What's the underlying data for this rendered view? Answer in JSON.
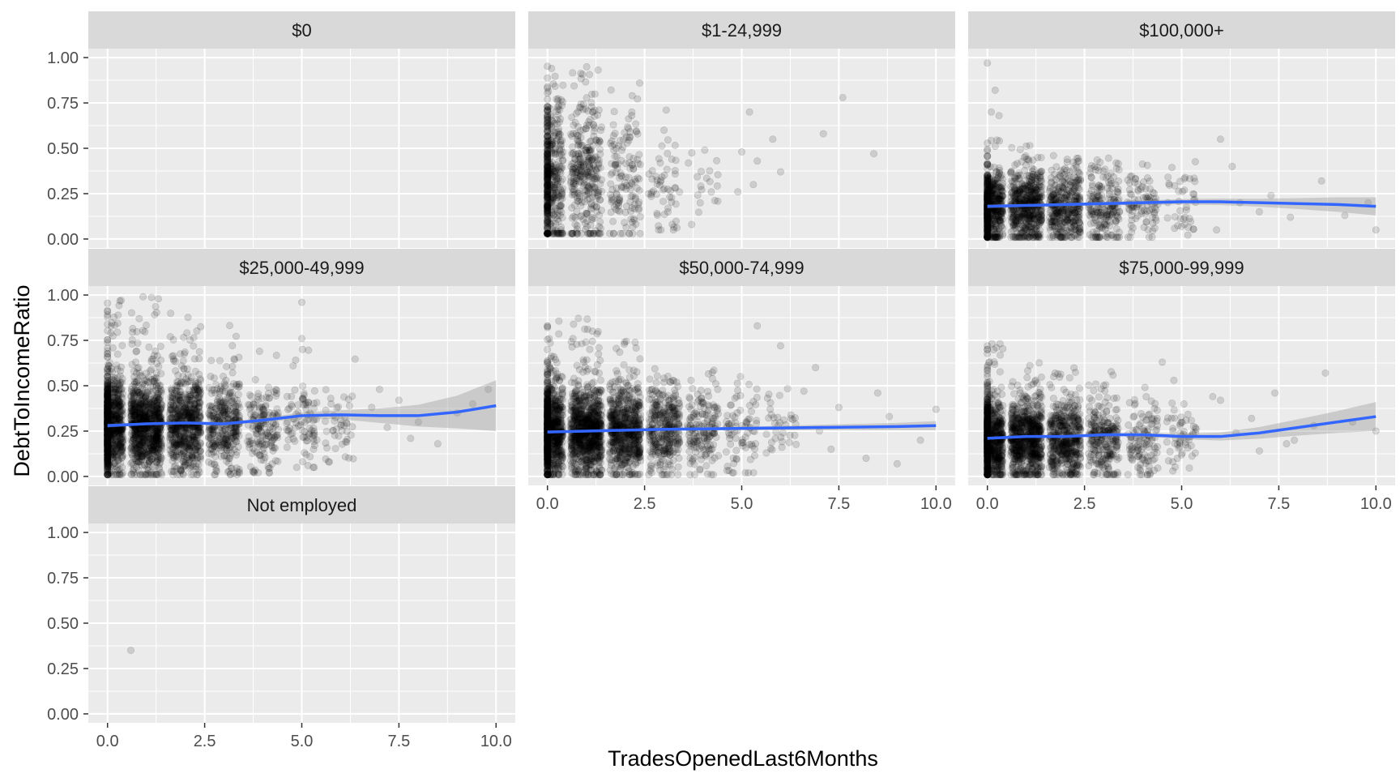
{
  "chart_data": {
    "type": "scatter",
    "xlabel": "TradesOpenedLast6Months",
    "ylabel": "DebtToIncomeRatio",
    "xlim": [
      0,
      10
    ],
    "ylim": [
      0,
      1
    ],
    "x_ticks": [
      "0.0",
      "2.5",
      "5.0",
      "7.5",
      "10.0"
    ],
    "y_ticks": [
      "0.00",
      "0.25",
      "0.50",
      "0.75",
      "1.00"
    ],
    "grid": true,
    "point_color": "#000000",
    "smooth_color": "#3366ff",
    "band_color": "#999999",
    "panel_bg": "#ebebeb",
    "strip_bg": "#d9d9d9",
    "facets": [
      {
        "label": "$0",
        "clusters": [],
        "outliers": [],
        "smooth": []
      },
      {
        "label": "$1-24,999",
        "clusters": [
          {
            "x": 0,
            "n": 520,
            "ymin": 0.03,
            "ymax": 0.98,
            "ymean": 0.33,
            "ysd": 0.22
          },
          {
            "x": 1,
            "n": 320,
            "ymin": 0.03,
            "ymax": 0.98,
            "ymean": 0.33,
            "ysd": 0.2
          },
          {
            "x": 2,
            "n": 140,
            "ymin": 0.03,
            "ymax": 0.9,
            "ymean": 0.33,
            "ysd": 0.2
          },
          {
            "x": 3,
            "n": 55,
            "ymin": 0.05,
            "ymax": 0.82,
            "ymean": 0.3,
            "ysd": 0.18
          },
          {
            "x": 4,
            "n": 20,
            "ymin": 0.08,
            "ymax": 0.65,
            "ymean": 0.3,
            "ysd": 0.15
          }
        ],
        "outliers": [
          [
            5.2,
            0.7
          ],
          [
            5.4,
            0.43
          ],
          [
            5.0,
            0.48
          ],
          [
            5.3,
            0.3
          ],
          [
            6.0,
            0.37
          ],
          [
            7.1,
            0.58
          ],
          [
            7.6,
            0.78
          ],
          [
            8.4,
            0.47
          ],
          [
            5.8,
            0.55
          ],
          [
            4.9,
            0.26
          ]
        ],
        "smooth": []
      },
      {
        "label": "$100,000+",
        "clusters": [
          {
            "x": 0,
            "n": 650,
            "ymin": 0.01,
            "ymax": 0.55,
            "ymean": 0.17,
            "ysd": 0.1
          },
          {
            "x": 1,
            "n": 550,
            "ymin": 0.01,
            "ymax": 0.52,
            "ymean": 0.17,
            "ysd": 0.1
          },
          {
            "x": 2,
            "n": 380,
            "ymin": 0.01,
            "ymax": 0.5,
            "ymean": 0.17,
            "ysd": 0.1
          },
          {
            "x": 3,
            "n": 200,
            "ymin": 0.01,
            "ymax": 0.45,
            "ymean": 0.18,
            "ysd": 0.1
          },
          {
            "x": 4,
            "n": 90,
            "ymin": 0.01,
            "ymax": 0.45,
            "ymean": 0.18,
            "ysd": 0.1
          },
          {
            "x": 5,
            "n": 40,
            "ymin": 0.01,
            "ymax": 0.45,
            "ymean": 0.18,
            "ysd": 0.1
          }
        ],
        "outliers": [
          [
            0.0,
            0.97
          ],
          [
            0.2,
            0.82
          ],
          [
            0.3,
            0.68
          ],
          [
            0.1,
            0.7
          ],
          [
            6.0,
            0.55
          ],
          [
            6.5,
            0.2
          ],
          [
            7.0,
            0.15
          ],
          [
            7.8,
            0.12
          ],
          [
            8.6,
            0.32
          ],
          [
            9.2,
            0.13
          ],
          [
            9.8,
            0.2
          ],
          [
            10.0,
            0.05
          ],
          [
            6.3,
            0.4
          ],
          [
            7.3,
            0.24
          ],
          [
            5.9,
            0.05
          ]
        ],
        "smooth": [
          [
            0,
            0.18
          ],
          [
            1,
            0.185
          ],
          [
            2,
            0.19
          ],
          [
            3,
            0.195
          ],
          [
            4,
            0.2
          ],
          [
            5,
            0.205
          ],
          [
            6,
            0.205
          ],
          [
            7,
            0.2
          ],
          [
            8,
            0.195
          ],
          [
            9,
            0.19
          ],
          [
            10,
            0.18
          ]
        ],
        "band": [
          [
            0,
            0.01
          ],
          [
            1,
            0.008
          ],
          [
            2,
            0.008
          ],
          [
            3,
            0.01
          ],
          [
            4,
            0.012
          ],
          [
            5,
            0.015
          ],
          [
            6,
            0.018
          ],
          [
            7,
            0.022
          ],
          [
            8,
            0.03
          ],
          [
            9,
            0.04
          ],
          [
            10,
            0.05
          ]
        ]
      },
      {
        "label": "$25,000-49,999",
        "clusters": [
          {
            "x": 0,
            "n": 1000,
            "ymin": 0.01,
            "ymax": 0.98,
            "ymean": 0.28,
            "ysd": 0.13
          },
          {
            "x": 1,
            "n": 900,
            "ymin": 0.01,
            "ymax": 1.0,
            "ymean": 0.28,
            "ysd": 0.13
          },
          {
            "x": 2,
            "n": 650,
            "ymin": 0.01,
            "ymax": 0.9,
            "ymean": 0.28,
            "ysd": 0.13
          },
          {
            "x": 3,
            "n": 350,
            "ymin": 0.01,
            "ymax": 0.95,
            "ymean": 0.28,
            "ysd": 0.13
          },
          {
            "x": 4,
            "n": 170,
            "ymin": 0.02,
            "ymax": 0.7,
            "ymean": 0.28,
            "ysd": 0.12
          },
          {
            "x": 5,
            "n": 90,
            "ymin": 0.05,
            "ymax": 0.7,
            "ymean": 0.3,
            "ysd": 0.12
          },
          {
            "x": 6,
            "n": 45,
            "ymin": 0.05,
            "ymax": 0.65,
            "ymean": 0.3,
            "ysd": 0.12
          }
        ],
        "outliers": [
          [
            5.0,
            0.96
          ],
          [
            5.0,
            0.76
          ],
          [
            7.0,
            0.48
          ],
          [
            7.5,
            0.42
          ],
          [
            8.0,
            0.3
          ],
          [
            8.5,
            0.18
          ],
          [
            9.0,
            0.35
          ],
          [
            9.8,
            0.48
          ],
          [
            7.2,
            0.27
          ],
          [
            7.8,
            0.21
          ],
          [
            9.4,
            0.4
          ],
          [
            6.8,
            0.38
          ]
        ],
        "smooth": [
          [
            0,
            0.28
          ],
          [
            1,
            0.29
          ],
          [
            2,
            0.295
          ],
          [
            3,
            0.29
          ],
          [
            4,
            0.31
          ],
          [
            5,
            0.335
          ],
          [
            6,
            0.34
          ],
          [
            7,
            0.335
          ],
          [
            8,
            0.335
          ],
          [
            9,
            0.355
          ],
          [
            10,
            0.39
          ]
        ],
        "band": [
          [
            0,
            0.01
          ],
          [
            1,
            0.006
          ],
          [
            2,
            0.006
          ],
          [
            3,
            0.008
          ],
          [
            4,
            0.012
          ],
          [
            5,
            0.018
          ],
          [
            6,
            0.025
          ],
          [
            7,
            0.04
          ],
          [
            8,
            0.06
          ],
          [
            9,
            0.09
          ],
          [
            10,
            0.14
          ]
        ]
      },
      {
        "label": "$50,000-74,999",
        "clusters": [
          {
            "x": 0,
            "n": 1000,
            "ymin": 0.01,
            "ymax": 0.86,
            "ymean": 0.25,
            "ysd": 0.12
          },
          {
            "x": 1,
            "n": 900,
            "ymin": 0.01,
            "ymax": 0.88,
            "ymean": 0.25,
            "ysd": 0.12
          },
          {
            "x": 2,
            "n": 650,
            "ymin": 0.01,
            "ymax": 0.75,
            "ymean": 0.25,
            "ysd": 0.12
          },
          {
            "x": 3,
            "n": 350,
            "ymin": 0.01,
            "ymax": 0.6,
            "ymean": 0.25,
            "ysd": 0.12
          },
          {
            "x": 4,
            "n": 170,
            "ymin": 0.01,
            "ymax": 0.6,
            "ymean": 0.25,
            "ysd": 0.12
          },
          {
            "x": 5,
            "n": 80,
            "ymin": 0.02,
            "ymax": 0.55,
            "ymean": 0.25,
            "ysd": 0.12
          },
          {
            "x": 6,
            "n": 35,
            "ymin": 0.02,
            "ymax": 0.5,
            "ymean": 0.25,
            "ysd": 0.12
          }
        ],
        "outliers": [
          [
            5.4,
            0.83
          ],
          [
            6.0,
            0.72
          ],
          [
            7.0,
            0.25
          ],
          [
            7.5,
            0.38
          ],
          [
            8.2,
            0.1
          ],
          [
            8.8,
            0.33
          ],
          [
            9.0,
            0.07
          ],
          [
            9.6,
            0.2
          ],
          [
            10.0,
            0.37
          ],
          [
            6.6,
            0.47
          ],
          [
            7.3,
            0.15
          ],
          [
            8.5,
            0.46
          ],
          [
            6.9,
            0.6
          ]
        ],
        "smooth": [
          [
            0,
            0.245
          ],
          [
            1,
            0.25
          ],
          [
            2,
            0.255
          ],
          [
            3,
            0.26
          ],
          [
            4,
            0.262
          ],
          [
            5,
            0.265
          ],
          [
            6,
            0.267
          ],
          [
            7,
            0.27
          ],
          [
            8,
            0.272
          ],
          [
            9,
            0.275
          ],
          [
            10,
            0.28
          ]
        ],
        "band": [
          [
            0,
            0.008
          ],
          [
            1,
            0.005
          ],
          [
            2,
            0.005
          ],
          [
            3,
            0.006
          ],
          [
            4,
            0.008
          ],
          [
            5,
            0.01
          ],
          [
            6,
            0.012
          ],
          [
            7,
            0.015
          ],
          [
            8,
            0.018
          ],
          [
            9,
            0.02
          ],
          [
            10,
            0.025
          ]
        ]
      },
      {
        "label": "$75,000-99,999",
        "clusters": [
          {
            "x": 0,
            "n": 900,
            "ymin": 0.01,
            "ymax": 0.75,
            "ymean": 0.2,
            "ysd": 0.11
          },
          {
            "x": 1,
            "n": 750,
            "ymin": 0.01,
            "ymax": 0.65,
            "ymean": 0.2,
            "ysd": 0.11
          },
          {
            "x": 2,
            "n": 500,
            "ymin": 0.01,
            "ymax": 0.6,
            "ymean": 0.2,
            "ysd": 0.11
          },
          {
            "x": 3,
            "n": 260,
            "ymin": 0.01,
            "ymax": 0.6,
            "ymean": 0.2,
            "ysd": 0.11
          },
          {
            "x": 4,
            "n": 120,
            "ymin": 0.01,
            "ymax": 0.55,
            "ymean": 0.2,
            "ysd": 0.11
          },
          {
            "x": 5,
            "n": 55,
            "ymin": 0.03,
            "ymax": 0.45,
            "ymean": 0.21,
            "ysd": 0.1
          }
        ],
        "outliers": [
          [
            6.0,
            0.42
          ],
          [
            6.4,
            0.24
          ],
          [
            7.0,
            0.14
          ],
          [
            7.4,
            0.46
          ],
          [
            7.9,
            0.2
          ],
          [
            8.4,
            0.28
          ],
          [
            8.7,
            0.57
          ],
          [
            9.4,
            0.3
          ],
          [
            10.0,
            0.25
          ],
          [
            6.8,
            0.32
          ],
          [
            7.7,
            0.18
          ],
          [
            5.8,
            0.44
          ],
          [
            4.5,
            0.63
          ],
          [
            4.8,
            0.53
          ]
        ],
        "smooth": [
          [
            0,
            0.21
          ],
          [
            1,
            0.22
          ],
          [
            2,
            0.22
          ],
          [
            3,
            0.23
          ],
          [
            4,
            0.23
          ],
          [
            5,
            0.22
          ],
          [
            6,
            0.22
          ],
          [
            7,
            0.24
          ],
          [
            8,
            0.27
          ],
          [
            9,
            0.3
          ],
          [
            10,
            0.33
          ]
        ],
        "band": [
          [
            0,
            0.008
          ],
          [
            1,
            0.005
          ],
          [
            2,
            0.005
          ],
          [
            3,
            0.007
          ],
          [
            4,
            0.01
          ],
          [
            5,
            0.015
          ],
          [
            6,
            0.022
          ],
          [
            7,
            0.032
          ],
          [
            8,
            0.045
          ],
          [
            9,
            0.06
          ],
          [
            10,
            0.08
          ]
        ]
      },
      {
        "label": "Not employed",
        "clusters": [],
        "outliers": [
          [
            0.6,
            0.35
          ]
        ],
        "smooth": []
      }
    ]
  }
}
